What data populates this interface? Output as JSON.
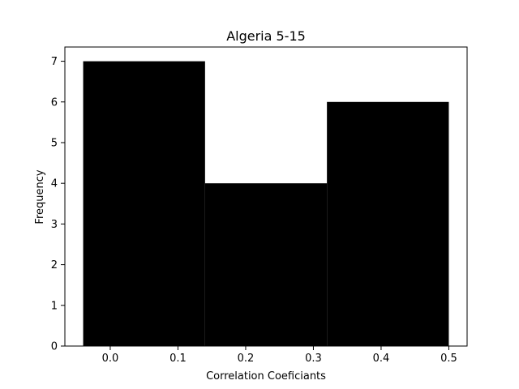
{
  "chart_data": {
    "type": "bar",
    "title": "Algeria 5-15",
    "xlabel": "Correlation Coeficiants",
    "ylabel": "Frequency",
    "bins": [
      {
        "x0": -0.04,
        "x1": 0.14,
        "value": 7
      },
      {
        "x0": 0.14,
        "x1": 0.32,
        "value": 4
      },
      {
        "x0": 0.32,
        "x1": 0.5,
        "value": 6
      }
    ],
    "xlim": [
      -0.067,
      0.527
    ],
    "ylim": [
      0,
      7.35
    ],
    "xticks": [
      0.0,
      0.1,
      0.2,
      0.3,
      0.4,
      0.5
    ],
    "xtick_labels": [
      "0.0",
      "0.1",
      "0.2",
      "0.3",
      "0.4",
      "0.5"
    ],
    "yticks": [
      0,
      1,
      2,
      3,
      4,
      5,
      6,
      7
    ],
    "ytick_labels": [
      "0",
      "1",
      "2",
      "3",
      "4",
      "5",
      "6",
      "7"
    ],
    "bar_color": "#000000",
    "grid": false,
    "legend": "none"
  }
}
